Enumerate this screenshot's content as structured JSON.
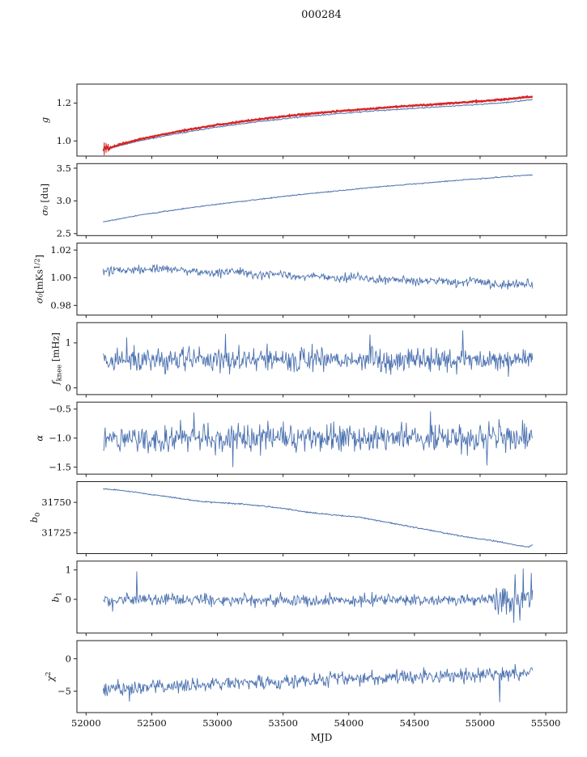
{
  "chart_data": {
    "type": "line",
    "title": "000284",
    "xlabel": "MJD",
    "x_start": 52130,
    "x_end": 55400,
    "xlim": [
      51930,
      55660
    ],
    "xticks": [
      52000,
      52500,
      53000,
      53500,
      54000,
      54500,
      55000,
      55500
    ],
    "line_color": "#4c72b0",
    "fit_color": "#d62728",
    "panels": [
      {
        "name": "g",
        "ylabel_parts": [
          {
            "text": "g",
            "italic": true
          }
        ],
        "ylim": [
          0.92,
          1.3
        ],
        "yticks": [
          {
            "v": 1.0,
            "label": "1.0"
          },
          {
            "v": 1.2,
            "label": "1.2"
          }
        ],
        "series": [
          {
            "name": "gain",
            "color": "#4c72b0",
            "lw": 1,
            "seed": 11,
            "noise": [
              [
                52130,
                0.0015
              ],
              [
                55400,
                0.0015
              ]
            ],
            "trend": [
              [
                52130,
                0.953
              ],
              [
                52400,
                1.0
              ],
              [
                52700,
                1.04
              ],
              [
                53000,
                1.074
              ],
              [
                53300,
                1.101
              ],
              [
                53600,
                1.124
              ],
              [
                53900,
                1.143
              ],
              [
                54200,
                1.159
              ],
              [
                54500,
                1.172
              ],
              [
                54800,
                1.185
              ],
              [
                55000,
                1.193
              ],
              [
                55200,
                1.203
              ],
              [
                55400,
                1.218
              ]
            ]
          },
          {
            "name": "gain-fit",
            "color": "#d62728",
            "lw": 2.4,
            "seed": 12,
            "noise": [
              [
                52130,
                0.01
              ],
              [
                52220,
                0.003
              ],
              [
                52320,
                0.0015
              ],
              [
                55400,
                0.0015
              ]
            ],
            "trend": [
              [
                52130,
                0.958
              ],
              [
                52400,
                1.008
              ],
              [
                52700,
                1.05
              ],
              [
                53000,
                1.085
              ],
              [
                53300,
                1.113
              ],
              [
                53600,
                1.137
              ],
              [
                53900,
                1.156
              ],
              [
                54200,
                1.172
              ],
              [
                54500,
                1.187
              ],
              [
                54800,
                1.2
              ],
              [
                55000,
                1.21
              ],
              [
                55200,
                1.22
              ],
              [
                55400,
                1.235
              ]
            ],
            "errorbars": [
              {
                "x": 52138,
                "y0": 0.925,
                "y1": 0.992
              },
              {
                "x": 52152,
                "y0": 0.938,
                "y1": 0.988
              },
              {
                "x": 52168,
                "y0": 0.944,
                "y1": 0.984
              }
            ]
          }
        ]
      },
      {
        "name": "sigma0-du",
        "ylabel_parts": [
          {
            "text": "σ₀",
            "italic": true
          },
          {
            "text": " [du]"
          }
        ],
        "ylim": [
          2.47,
          3.57
        ],
        "yticks": [
          {
            "v": 2.5,
            "label": "2.5"
          },
          {
            "v": 3.0,
            "label": "3.0"
          },
          {
            "v": 3.5,
            "label": "3.5"
          }
        ],
        "series": [
          {
            "name": "sigma0-du",
            "color": "#4c72b0",
            "lw": 1,
            "seed": 21,
            "noise": [
              [
                52130,
                0.004
              ],
              [
                55400,
                0.004
              ]
            ],
            "trend": [
              [
                52130,
                2.68
              ],
              [
                52400,
                2.78
              ],
              [
                52700,
                2.87
              ],
              [
                53000,
                2.95
              ],
              [
                53300,
                3.02
              ],
              [
                53600,
                3.09
              ],
              [
                53900,
                3.15
              ],
              [
                54200,
                3.21
              ],
              [
                54500,
                3.26
              ],
              [
                54800,
                3.31
              ],
              [
                55000,
                3.34
              ],
              [
                55200,
                3.37
              ],
              [
                55400,
                3.4
              ]
            ]
          }
        ]
      },
      {
        "name": "sigma0-mks",
        "ylabel_parts": [
          {
            "text": "σ₀",
            "italic": true
          },
          {
            "text": "[mKs"
          },
          {
            "text": "1/2",
            "sup": true
          },
          {
            "text": "]"
          }
        ],
        "ylim": [
          0.973,
          1.025
        ],
        "yticks": [
          {
            "v": 0.98,
            "label": "0.98"
          },
          {
            "v": 1.0,
            "label": "1.00"
          },
          {
            "v": 1.02,
            "label": "1.02"
          }
        ],
        "series": [
          {
            "name": "sigma0-mks",
            "color": "#4c72b0",
            "lw": 0.9,
            "seed": 31,
            "noise": [
              [
                52130,
                0.0016
              ],
              [
                55400,
                0.0016
              ]
            ],
            "trend": [
              [
                52130,
                1.004
              ],
              [
                52350,
                1.006
              ],
              [
                52600,
                1.007
              ],
              [
                52800,
                1.005
              ],
              [
                53000,
                1.003
              ],
              [
                53150,
                1.005
              ],
              [
                53300,
                1.001
              ],
              [
                53450,
                1.003
              ],
              [
                53600,
                1.0
              ],
              [
                53750,
                1.002
              ],
              [
                53900,
                0.999
              ],
              [
                54050,
                1.001
              ],
              [
                54200,
                0.998
              ],
              [
                54350,
                0.999
              ],
              [
                54500,
                0.997
              ],
              [
                54650,
                0.998
              ],
              [
                54800,
                0.996
              ],
              [
                54950,
                0.998
              ],
              [
                55100,
                0.994
              ],
              [
                55250,
                0.996
              ],
              [
                55400,
                0.995
              ]
            ]
          }
        ]
      },
      {
        "name": "fknee",
        "ylabel_parts": [
          {
            "text": "f",
            "italic": true
          },
          {
            "text": "knee",
            "sub": true
          },
          {
            "text": " [mHz]"
          }
        ],
        "ylim": [
          -0.15,
          1.45
        ],
        "yticks": [
          {
            "v": 0,
            "label": "0"
          },
          {
            "v": 1,
            "label": "1"
          }
        ],
        "series": [
          {
            "name": "fknee",
            "color": "#4c72b0",
            "lw": 0.9,
            "seed": 41,
            "noise": [
              [
                52130,
                0.14
              ],
              [
                55400,
                0.14
              ]
            ],
            "trend": [
              [
                52130,
                0.62
              ],
              [
                55400,
                0.62
              ]
            ],
            "spikes": [
              [
                52310,
                1.12
              ],
              [
                53060,
                1.2
              ],
              [
                54160,
                1.18
              ],
              [
                54870,
                1.28
              ]
            ]
          }
        ]
      },
      {
        "name": "alpha",
        "ylabel_parts": [
          {
            "text": "α",
            "italic": true
          }
        ],
        "ylim": [
          -1.62,
          -0.38
        ],
        "yticks": [
          {
            "v": -1.5,
            "label": "−1.5"
          },
          {
            "v": -1.0,
            "label": "−1.0"
          },
          {
            "v": -0.5,
            "label": "−0.5"
          }
        ],
        "series": [
          {
            "name": "alpha",
            "color": "#4c72b0",
            "lw": 0.9,
            "seed": 51,
            "noise": [
              [
                52130,
                0.12
              ],
              [
                55400,
                0.12
              ]
            ],
            "trend": [
              [
                52130,
                -1.0
              ],
              [
                55400,
                -1.0
              ]
            ],
            "spikes": [
              [
                52820,
                -0.56
              ],
              [
                53120,
                -1.5
              ],
              [
                54620,
                -0.54
              ],
              [
                55050,
                -1.47
              ]
            ]
          }
        ]
      },
      {
        "name": "b0",
        "ylabel_parts": [
          {
            "text": "b",
            "italic": true
          },
          {
            "text": "0",
            "sub": true
          }
        ],
        "ylim": [
          31708,
          31767
        ],
        "yticks": [
          {
            "v": 31725,
            "label": "31725"
          },
          {
            "v": 31750,
            "label": "31750"
          }
        ],
        "series": [
          {
            "name": "b0",
            "color": "#4c72b0",
            "lw": 1,
            "seed": 61,
            "noise": [
              [
                52130,
                0.25
              ],
              [
                55400,
                0.25
              ]
            ],
            "trend": [
              [
                52130,
                31761
              ],
              [
                52300,
                31759.5
              ],
              [
                52450,
                31757
              ],
              [
                52600,
                31755
              ],
              [
                52750,
                31752.5
              ],
              [
                52900,
                31750.5
              ],
              [
                53050,
                31749.5
              ],
              [
                53200,
                31748.5
              ],
              [
                53350,
                31747
              ],
              [
                53500,
                31745
              ],
              [
                53650,
                31742.5
              ],
              [
                53800,
                31740.5
              ],
              [
                53950,
                31739
              ],
              [
                54100,
                31737.5
              ],
              [
                54250,
                31734.5
              ],
              [
                54400,
                31731.5
              ],
              [
                54550,
                31728.5
              ],
              [
                54700,
                31725.5
              ],
              [
                54850,
                31722.5
              ],
              [
                55000,
                31720
              ],
              [
                55100,
                31718.5
              ],
              [
                55200,
                31716.5
              ],
              [
                55300,
                31714.5
              ],
              [
                55370,
                31713.5
              ],
              [
                55400,
                31715.5
              ]
            ]
          }
        ]
      },
      {
        "name": "b1",
        "ylabel_parts": [
          {
            "text": "b",
            "italic": true
          },
          {
            "text": "1",
            "sub": true
          }
        ],
        "ylim": [
          -1.15,
          1.3
        ],
        "yticks": [
          {
            "v": 0,
            "label": "0"
          },
          {
            "v": 1,
            "label": "1"
          }
        ],
        "series": [
          {
            "name": "b1",
            "color": "#4c72b0",
            "lw": 0.9,
            "seed": 71,
            "noise": [
              [
                52130,
                0.1
              ],
              [
                55050,
                0.1
              ],
              [
                55200,
                0.35
              ],
              [
                55400,
                0.42
              ]
            ],
            "trend": [
              [
                52130,
                -0.02
              ],
              [
                55400,
                -0.02
              ]
            ],
            "spikes": [
              [
                52200,
                -0.42
              ],
              [
                52385,
                0.95
              ],
              [
                55255,
                -0.8
              ],
              [
                55330,
                1.05
              ],
              [
                55390,
                0.9
              ]
            ]
          }
        ]
      },
      {
        "name": "chi2",
        "ylabel_parts": [
          {
            "text": "χ",
            "italic": true
          },
          {
            "text": "2",
            "sup": true
          }
        ],
        "ylim": [
          -8.3,
          2.8
        ],
        "yticks": [
          {
            "v": -5,
            "label": "−5"
          },
          {
            "v": 0,
            "label": "0"
          }
        ],
        "series": [
          {
            "name": "chi2",
            "color": "#4c72b0",
            "lw": 0.9,
            "seed": 81,
            "noise": [
              [
                52130,
                0.55
              ],
              [
                55400,
                0.55
              ]
            ],
            "trend": [
              [
                52130,
                -4.6
              ],
              [
                52600,
                -4.3
              ],
              [
                53000,
                -3.9
              ],
              [
                53600,
                -3.4
              ],
              [
                54200,
                -3.0
              ],
              [
                54800,
                -2.6
              ],
              [
                55400,
                -2.2
              ]
            ],
            "spikes": [
              [
                52330,
                -6.6
              ],
              [
                55150,
                -6.7
              ]
            ]
          }
        ]
      }
    ]
  }
}
